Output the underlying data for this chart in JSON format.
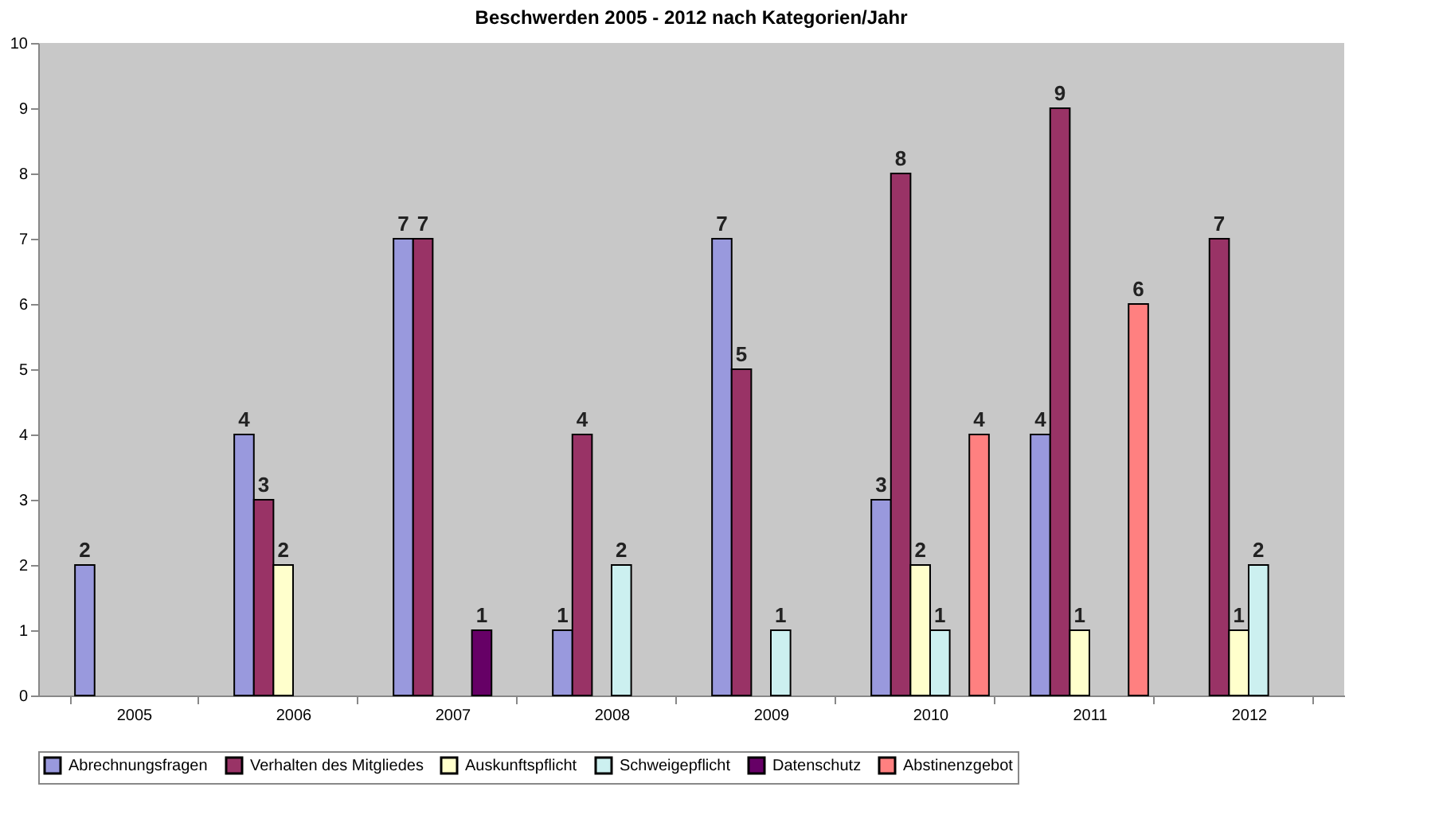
{
  "chart_data": {
    "type": "bar",
    "title": "Beschwerden 2005 - 2012 nach Kategorien/Jahr",
    "categories": [
      "2005",
      "2006",
      "2007",
      "2008",
      "2009",
      "2010",
      "2011",
      "2012"
    ],
    "series": [
      {
        "name": "Abrechnungsfragen",
        "color": "#9999dd",
        "values": [
          2,
          4,
          7,
          1,
          7,
          3,
          4,
          null
        ]
      },
      {
        "name": "Verhalten des Mitgliedes",
        "color": "#993366",
        "values": [
          null,
          3,
          7,
          4,
          5,
          8,
          9,
          7
        ]
      },
      {
        "name": "Auskunftspflicht",
        "color": "#ffffcc",
        "values": [
          null,
          2,
          null,
          null,
          null,
          2,
          1,
          1
        ]
      },
      {
        "name": "Schweigepflicht",
        "color": "#ccf0f0",
        "values": [
          null,
          null,
          null,
          2,
          1,
          1,
          null,
          2
        ]
      },
      {
        "name": "Datenschutz",
        "color": "#660066",
        "values": [
          null,
          null,
          1,
          null,
          null,
          null,
          null,
          null
        ]
      },
      {
        "name": "Abstinenzgebot",
        "color": "#ff8080",
        "values": [
          null,
          null,
          null,
          null,
          null,
          4,
          6,
          null
        ]
      }
    ],
    "ylim": [
      0,
      10
    ],
    "yticks": [
      0,
      1,
      2,
      3,
      4,
      5,
      6,
      7,
      8,
      9,
      10
    ],
    "grid": false,
    "legend": "bottom",
    "data_labels": true
  }
}
